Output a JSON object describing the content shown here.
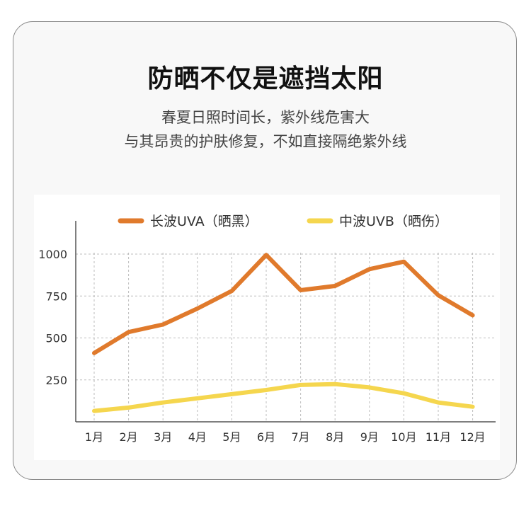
{
  "header": {
    "title": "防晒不仅是遮挡太阳",
    "subtitle_line1": "春夏日照时间长，紫外线危害大",
    "subtitle_line2": "与其昂贵的护肤修复，不如直接隔绝紫外线"
  },
  "chart_data": {
    "type": "line",
    "categories": [
      "1月",
      "2月",
      "3月",
      "4月",
      "5月",
      "6月",
      "7月",
      "8月",
      "9月",
      "10月",
      "11月",
      "12月"
    ],
    "series": [
      {
        "name": "长波UVA（晒黑）",
        "color": "#E07A2C",
        "values": [
          410,
          535,
          580,
          675,
          780,
          995,
          785,
          810,
          910,
          955,
          755,
          635
        ]
      },
      {
        "name": "中波UVB（晒伤）",
        "color": "#F5D64E",
        "values": [
          65,
          85,
          115,
          140,
          165,
          190,
          220,
          225,
          205,
          170,
          115,
          90
        ]
      }
    ],
    "yticks": [
      250,
      500,
      750,
      1000
    ],
    "ylim": [
      0,
      1000
    ],
    "grid": true,
    "legend": "top"
  }
}
